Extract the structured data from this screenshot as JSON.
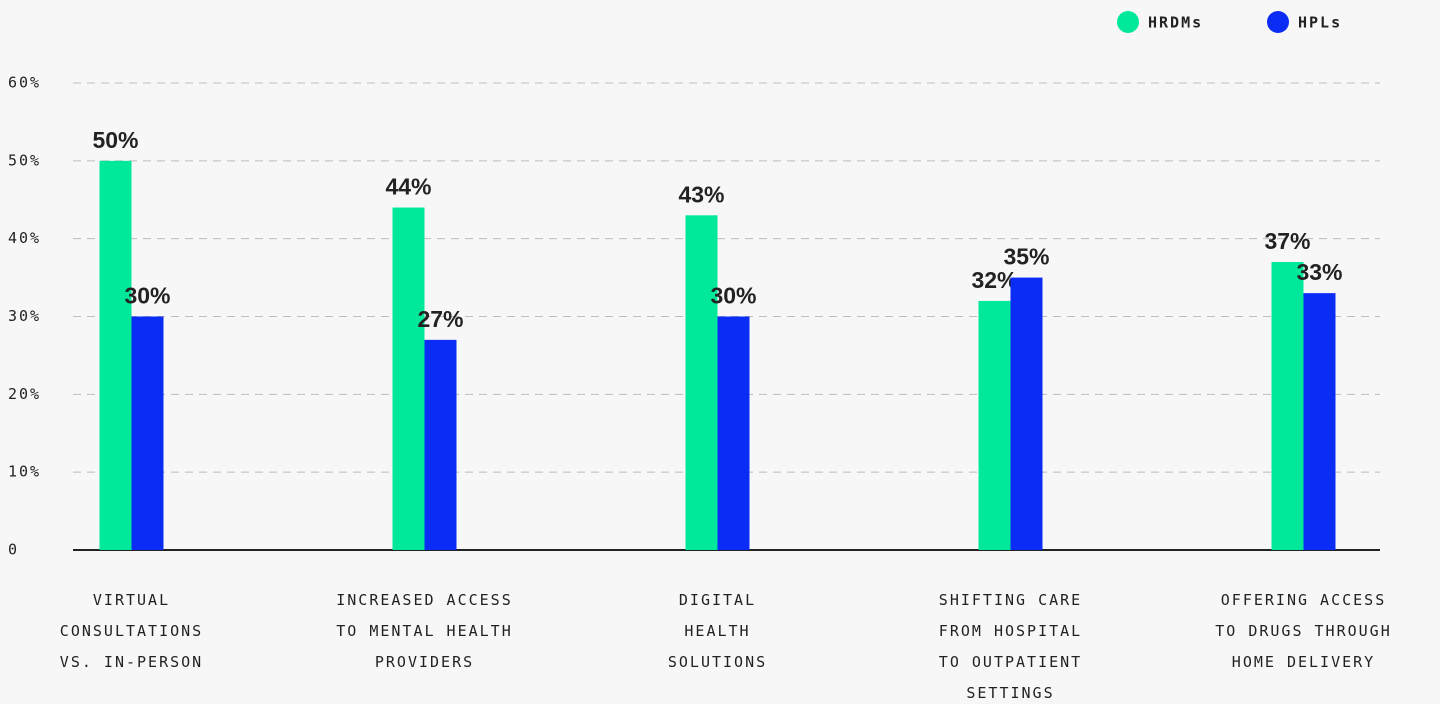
{
  "chart_data": {
    "type": "bar",
    "categories": [
      "VIRTUAL\nCONSULTATIONS\nVS. IN-PERSON",
      "INCREASED ACCESS\nTO MENTAL HEALTH\nPROVIDERS",
      "DIGITAL\nHEALTH\nSOLUTIONS",
      "SHIFTING CARE\nFROM HOSPITAL\nTO OUTPATIENT\nSETTINGS",
      "OFFERING ACCESS\nTO DRUGS THROUGH\nHOME DELIVERY"
    ],
    "series": [
      {
        "name": "HRDMs",
        "color": "#00e89a",
        "values": [
          50,
          44,
          43,
          32,
          37
        ],
        "value_labels": [
          "50%",
          "44%",
          "43%",
          "32%",
          "37%"
        ]
      },
      {
        "name": "HPLs",
        "color": "#0a2cf5",
        "values": [
          30,
          27,
          30,
          35,
          33
        ],
        "value_labels": [
          "30%",
          "27%",
          "30%",
          "35%",
          "33%"
        ]
      }
    ],
    "ylim": [
      0,
      60
    ],
    "yticks": [
      0,
      {
        "value": 10,
        "label": "10%"
      },
      {
        "value": 20,
        "label": "20%"
      },
      {
        "value": 30,
        "label": "30%"
      },
      {
        "value": 40,
        "label": "40%"
      },
      {
        "value": 50,
        "label": "50%"
      },
      {
        "value": 60,
        "label": "60%"
      }
    ],
    "grid": true,
    "legend": "top-right"
  }
}
